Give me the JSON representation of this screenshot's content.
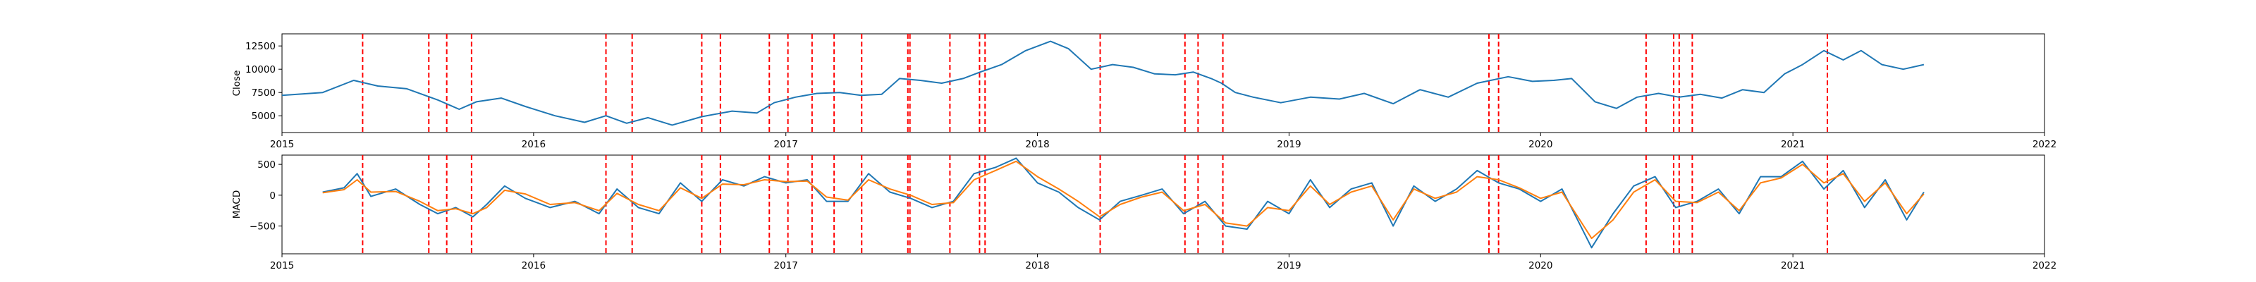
{
  "chart_data": [
    {
      "type": "line",
      "ylabel": "Close",
      "xlabel": "",
      "xlim": [
        "2015-01-01",
        "2022-01-01"
      ],
      "ylim": [
        3200,
        13800
      ],
      "x_ticks": [
        "2015",
        "2016",
        "2017",
        "2018",
        "2019",
        "2020",
        "2021",
        "2022"
      ],
      "y_ticks": [
        5000,
        7500,
        10000,
        12500
      ],
      "y_tick_labels": [
        "5000",
        "7500",
        "10000",
        "12500"
      ],
      "series": [
        {
          "color": "#1f77b4",
          "x": [
            "2015-01-01",
            "2015-03-01",
            "2015-04-15",
            "2015-05-20",
            "2015-07-01",
            "2015-08-15",
            "2015-09-15",
            "2015-10-10",
            "2015-11-15",
            "2015-12-20",
            "2016-02-01",
            "2016-03-15",
            "2016-04-15",
            "2016-05-15",
            "2016-06-15",
            "2016-07-20",
            "2016-09-01",
            "2016-10-15",
            "2016-11-20",
            "2016-12-15",
            "2017-01-15",
            "2017-02-15",
            "2017-03-20",
            "2017-04-20",
            "2017-05-20",
            "2017-06-15",
            "2017-07-15",
            "2017-08-15",
            "2017-09-15",
            "2017-10-10",
            "2017-11-10",
            "2017-12-15",
            "2018-01-20",
            "2018-02-15",
            "2018-03-20",
            "2018-04-20",
            "2018-05-20",
            "2018-06-20",
            "2018-07-20",
            "2018-08-15",
            "2018-09-10",
            "2018-09-25",
            "2018-10-15",
            "2018-11-10",
            "2018-12-20",
            "2019-02-01",
            "2019-03-15",
            "2019-04-20",
            "2019-06-01",
            "2019-07-10",
            "2019-08-20",
            "2019-10-01",
            "2019-11-15",
            "2019-12-20",
            "2020-01-20",
            "2020-02-15",
            "2020-03-20",
            "2020-04-20",
            "2020-05-20",
            "2020-06-20",
            "2020-07-20",
            "2020-08-20",
            "2020-09-20",
            "2020-10-20",
            "2020-11-20",
            "2020-12-20",
            "2021-01-15",
            "2021-02-15",
            "2021-03-15",
            "2021-04-10",
            "2021-05-10",
            "2021-06-10",
            "2021-07-10"
          ],
          "y": [
            7200,
            7500,
            8800,
            8200,
            7900,
            6700,
            5700,
            6500,
            6900,
            6000,
            5000,
            4300,
            5000,
            4200,
            4800,
            4000,
            4900,
            5500,
            5300,
            6400,
            7000,
            7400,
            7500,
            7200,
            7300,
            9000,
            8800,
            8500,
            9000,
            9700,
            10500,
            12000,
            13000,
            12200,
            10000,
            10500,
            10200,
            9500,
            9400,
            9700,
            9000,
            8500,
            7500,
            7000,
            6400,
            7000,
            6800,
            7400,
            6300,
            7800,
            7000,
            8500,
            9200,
            8700,
            8800,
            9000,
            6500,
            5800,
            7000,
            7400,
            7000,
            7300,
            6900,
            7800,
            7500,
            9500,
            10500,
            12000,
            11000,
            12000,
            10500,
            10000,
            10500
          ]
        }
      ]
    },
    {
      "type": "line",
      "ylabel": "MACD",
      "xlabel": "",
      "xlim": [
        "2015-01-01",
        "2022-01-01"
      ],
      "ylim": [
        -950,
        650
      ],
      "x_ticks": [
        "2015",
        "2016",
        "2017",
        "2018",
        "2019",
        "2020",
        "2021",
        "2022"
      ],
      "y_ticks": [
        -500,
        0,
        500
      ],
      "y_tick_labels": [
        "−500",
        "0",
        "500"
      ],
      "series": [
        {
          "color": "#1f77b4",
          "x": [
            "2015-03-01",
            "2015-04-01",
            "2015-04-20",
            "2015-05-10",
            "2015-06-15",
            "2015-07-20",
            "2015-08-15",
            "2015-09-10",
            "2015-10-05",
            "2015-10-25",
            "2015-11-20",
            "2015-12-20",
            "2016-01-25",
            "2016-03-01",
            "2016-04-05",
            "2016-05-01",
            "2016-06-01",
            "2016-07-01",
            "2016-08-01",
            "2016-09-01",
            "2016-10-01",
            "2016-11-01",
            "2016-12-01",
            "2017-01-01",
            "2017-02-01",
            "2017-03-01",
            "2017-04-01",
            "2017-05-01",
            "2017-06-01",
            "2017-07-01",
            "2017-08-01",
            "2017-09-01",
            "2017-10-01",
            "2017-11-01",
            "2017-12-01",
            "2018-01-01",
            "2018-02-01",
            "2018-03-01",
            "2018-04-01",
            "2018-05-01",
            "2018-06-01",
            "2018-07-01",
            "2018-08-01",
            "2018-09-01",
            "2018-10-01",
            "2018-11-01",
            "2018-12-01",
            "2019-01-01",
            "2019-02-01",
            "2019-03-01",
            "2019-04-01",
            "2019-05-01",
            "2019-06-01",
            "2019-07-01",
            "2019-08-01",
            "2019-09-01",
            "2019-10-01",
            "2019-11-01",
            "2019-12-01",
            "2020-01-01",
            "2020-02-01",
            "2020-03-15",
            "2020-04-15",
            "2020-05-15",
            "2020-06-15",
            "2020-07-15",
            "2020-08-15",
            "2020-09-15",
            "2020-10-15",
            "2020-11-15",
            "2020-12-15",
            "2021-01-15",
            "2021-02-15",
            "2021-03-15",
            "2021-04-15",
            "2021-05-15",
            "2021-06-15",
            "2021-07-10"
          ],
          "y": [
            50,
            120,
            350,
            -20,
            100,
            -150,
            -300,
            -200,
            -350,
            -150,
            150,
            -50,
            -200,
            -100,
            -300,
            100,
            -200,
            -300,
            200,
            -100,
            250,
            150,
            300,
            200,
            250,
            -100,
            -100,
            350,
            50,
            -50,
            -200,
            -100,
            350,
            450,
            600,
            200,
            50,
            -200,
            -400,
            -100,
            0,
            100,
            -300,
            -100,
            -500,
            -550,
            -100,
            -300,
            250,
            -200,
            100,
            200,
            -500,
            150,
            -100,
            100,
            400,
            200,
            100,
            -100,
            100,
            -850,
            -300,
            150,
            300,
            -200,
            -100,
            100,
            -300,
            300,
            300,
            550,
            100,
            400,
            -200,
            250,
            -400,
            50
          ]
        },
        {
          "color": "#ff7f0e",
          "x": [
            "2015-03-01",
            "2015-04-01",
            "2015-04-20",
            "2015-05-10",
            "2015-06-15",
            "2015-07-20",
            "2015-08-15",
            "2015-09-10",
            "2015-10-05",
            "2015-10-25",
            "2015-11-20",
            "2015-12-20",
            "2016-01-25",
            "2016-03-01",
            "2016-04-05",
            "2016-05-01",
            "2016-06-01",
            "2016-07-01",
            "2016-08-01",
            "2016-09-01",
            "2016-10-01",
            "2016-11-01",
            "2016-12-01",
            "2017-01-01",
            "2017-02-01",
            "2017-03-01",
            "2017-04-01",
            "2017-05-01",
            "2017-06-01",
            "2017-07-01",
            "2017-08-01",
            "2017-09-01",
            "2017-10-01",
            "2017-11-01",
            "2017-12-01",
            "2018-01-01",
            "2018-02-01",
            "2018-03-01",
            "2018-04-01",
            "2018-05-01",
            "2018-06-01",
            "2018-07-01",
            "2018-08-01",
            "2018-09-01",
            "2018-10-01",
            "2018-11-01",
            "2018-12-01",
            "2019-01-01",
            "2019-02-01",
            "2019-03-01",
            "2019-04-01",
            "2019-05-01",
            "2019-06-01",
            "2019-07-01",
            "2019-08-01",
            "2019-09-01",
            "2019-10-01",
            "2019-11-01",
            "2019-12-01",
            "2020-01-01",
            "2020-02-01",
            "2020-03-15",
            "2020-04-15",
            "2020-05-15",
            "2020-06-15",
            "2020-07-15",
            "2020-08-15",
            "2020-09-15",
            "2020-10-15",
            "2020-11-15",
            "2020-12-15",
            "2021-01-15",
            "2021-02-15",
            "2021-03-15",
            "2021-04-15",
            "2021-05-15",
            "2021-06-15",
            "2021-07-10"
          ],
          "y": [
            40,
            90,
            250,
            50,
            60,
            -100,
            -250,
            -220,
            -300,
            -200,
            80,
            20,
            -150,
            -120,
            -250,
            30,
            -150,
            -250,
            120,
            -50,
            180,
            170,
            250,
            220,
            230,
            -30,
            -80,
            250,
            100,
            0,
            -150,
            -120,
            250,
            400,
            550,
            300,
            100,
            -100,
            -350,
            -150,
            -30,
            50,
            -250,
            -150,
            -450,
            -500,
            -200,
            -250,
            150,
            -150,
            50,
            150,
            -400,
            100,
            -50,
            50,
            300,
            250,
            120,
            -50,
            50,
            -700,
            -400,
            50,
            250,
            -100,
            -120,
            50,
            -250,
            200,
            280,
            500,
            200,
            350,
            -100,
            200,
            -300,
            20
          ]
        }
      ]
    }
  ],
  "event_markers": {
    "color": "#ff0000",
    "style": "dashed",
    "dates": [
      "2015-04-28",
      "2015-08-02",
      "2015-08-28",
      "2015-10-03",
      "2016-04-15",
      "2016-05-23",
      "2016-09-01",
      "2016-09-28",
      "2016-12-08",
      "2017-01-04",
      "2017-02-08",
      "2017-03-12",
      "2017-04-21",
      "2017-06-27",
      "2017-06-30",
      "2017-08-27",
      "2017-10-09",
      "2017-10-17",
      "2018-04-02",
      "2018-08-03",
      "2018-08-22",
      "2018-09-27",
      "2019-10-18",
      "2019-11-01",
      "2020-06-02",
      "2020-07-12",
      "2020-07-20",
      "2020-08-08",
      "2021-02-20"
    ]
  }
}
